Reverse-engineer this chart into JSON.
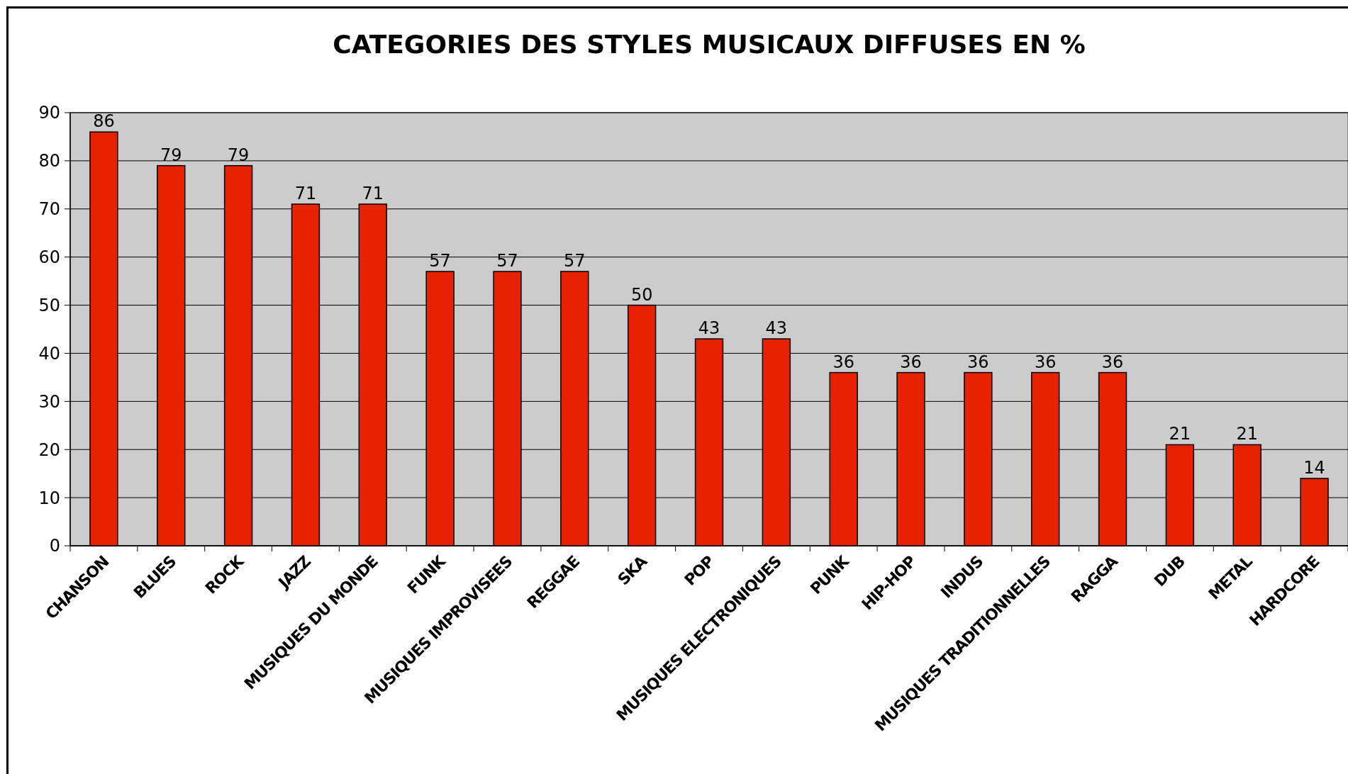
{
  "chart_data": {
    "type": "bar",
    "title": "CATEGORIES DES STYLES MUSICAUX DIFFUSES EN %",
    "categories": [
      "CHANSON",
      "BLUES",
      "ROCK",
      "JAZZ",
      "MUSIQUES DU MONDE",
      "FUNK",
      "MUSIQUES IMPROVISEES",
      "REGGAE",
      "SKA",
      "POP",
      "MUSIQUES ELECTRONIQUES",
      "PUNK",
      "HIP-HOP",
      "INDUS",
      "MUSIQUES TRADITIONNELLES",
      "RAGGA",
      "DUB",
      "METAL",
      "HARDCORE"
    ],
    "values": [
      86,
      79,
      79,
      71,
      71,
      57,
      57,
      57,
      50,
      43,
      43,
      36,
      36,
      36,
      36,
      36,
      21,
      21,
      14
    ],
    "color": "#e62200",
    "ylim": [
      0,
      90
    ],
    "yticks": [
      0,
      10,
      20,
      30,
      40,
      50,
      60,
      70,
      80,
      90
    ],
    "grid": "y",
    "data_labels": true
  }
}
